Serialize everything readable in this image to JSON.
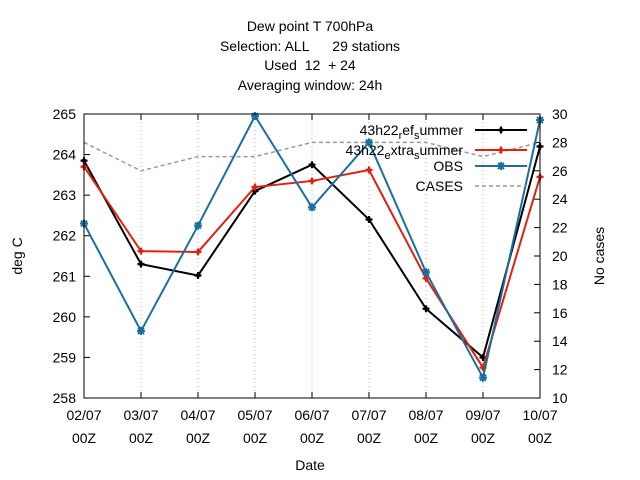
{
  "chart_data": {
    "type": "line",
    "title_lines": [
      "Dew point T 700hPa",
      "Selection: ALL      29 stations",
      "Used  12  + 24",
      "Averaging window: 24h"
    ],
    "xlabel": "Date",
    "ylabel": "deg C",
    "y2label": "No cases",
    "categories": [
      [
        "02/07",
        "00Z"
      ],
      [
        "03/07",
        "00Z"
      ],
      [
        "04/07",
        "00Z"
      ],
      [
        "05/07",
        "00Z"
      ],
      [
        "06/07",
        "00Z"
      ],
      [
        "07/07",
        "00Z"
      ],
      [
        "08/07",
        "00Z"
      ],
      [
        "09/07",
        "00Z"
      ],
      [
        "10/07",
        "00Z"
      ]
    ],
    "ylim": [
      258,
      265
    ],
    "yticks": [
      258,
      259,
      260,
      261,
      262,
      263,
      264,
      265
    ],
    "y2lim": [
      10,
      30
    ],
    "y2ticks": [
      10,
      12,
      14,
      16,
      18,
      20,
      22,
      24,
      26,
      28,
      30
    ],
    "legend_position": "top-right",
    "series": [
      {
        "name": "43h22_ref_summer",
        "label": {
          "base": "43h22",
          "sub1": "r",
          "mid": "ef",
          "sub2": "s",
          "tail": "ummer"
        },
        "color": "#000000",
        "marker": "plus",
        "axis": "y",
        "values": [
          263.85,
          261.3,
          261.02,
          263.1,
          263.75,
          262.4,
          260.2,
          259.0,
          264.2
        ]
      },
      {
        "name": "43h22_extra_summer",
        "label": {
          "base": "43h22",
          "sub1": "e",
          "mid": "xtra",
          "sub2": "s",
          "tail": "ummer"
        },
        "color": "#dd2211",
        "marker": "plus",
        "axis": "y",
        "values": [
          263.7,
          261.62,
          261.6,
          263.2,
          263.35,
          263.62,
          260.95,
          258.75,
          263.45
        ]
      },
      {
        "name": "OBS",
        "label": {
          "base": "OBS"
        },
        "color": "#1a6fa0",
        "marker": "star",
        "axis": "y",
        "values": [
          262.3,
          259.65,
          262.25,
          264.95,
          262.7,
          264.3,
          261.1,
          258.5,
          264.85
        ]
      },
      {
        "name": "CASES",
        "label": {
          "base": "CASES"
        },
        "color": "#999999",
        "dashed": true,
        "axis": "y2",
        "values": [
          28,
          26,
          27,
          27,
          28,
          28,
          28,
          27,
          28
        ]
      }
    ]
  }
}
